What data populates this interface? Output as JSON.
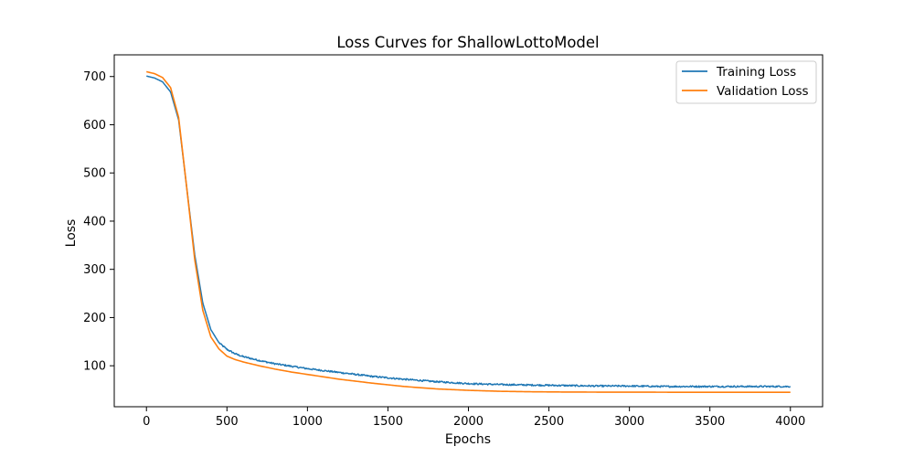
{
  "chart_data": {
    "type": "line",
    "title": "Loss Curves for ShallowLottoModel",
    "xlabel": "Epochs",
    "ylabel": "Loss",
    "xlim": [
      -200,
      4200
    ],
    "ylim": [
      15,
      745
    ],
    "xticks": [
      0,
      500,
      1000,
      1500,
      2000,
      2500,
      3000,
      3500,
      4000
    ],
    "yticks": [
      100,
      200,
      300,
      400,
      500,
      600,
      700
    ],
    "grid": false,
    "legend_position": "top-right",
    "series": [
      {
        "name": "Training Loss",
        "color": "#1f77b4",
        "noisy": true,
        "x": [
          0,
          50,
          100,
          150,
          200,
          250,
          300,
          350,
          400,
          450,
          500,
          550,
          600,
          700,
          800,
          900,
          1000,
          1200,
          1400,
          1600,
          1800,
          2000,
          2200,
          2400,
          2600,
          2800,
          3000,
          3200,
          3400,
          3600,
          3800,
          4000
        ],
        "y": [
          701,
          697,
          689,
          668,
          610,
          470,
          330,
          230,
          175,
          148,
          134,
          125,
          119,
          111,
          104,
          99,
          94,
          86,
          78,
          72,
          67,
          63,
          61,
          60,
          59,
          58,
          58,
          57,
          57,
          57,
          57,
          57
        ]
      },
      {
        "name": "Validation Loss",
        "color": "#ff7f0e",
        "noisy": false,
        "x": [
          0,
          50,
          100,
          150,
          200,
          250,
          300,
          350,
          400,
          450,
          500,
          550,
          600,
          700,
          800,
          900,
          1000,
          1200,
          1400,
          1600,
          1800,
          2000,
          2200,
          2400,
          2600,
          2800,
          3000,
          3200,
          3400,
          3600,
          3800,
          4000
        ],
        "y": [
          710,
          706,
          698,
          677,
          615,
          470,
          320,
          215,
          160,
          135,
          120,
          113,
          108,
          100,
          93,
          87,
          82,
          72,
          64,
          57,
          52,
          49,
          47,
          46,
          45.5,
          45.3,
          45.2,
          45.1,
          45,
          45,
          45,
          45
        ]
      }
    ]
  }
}
